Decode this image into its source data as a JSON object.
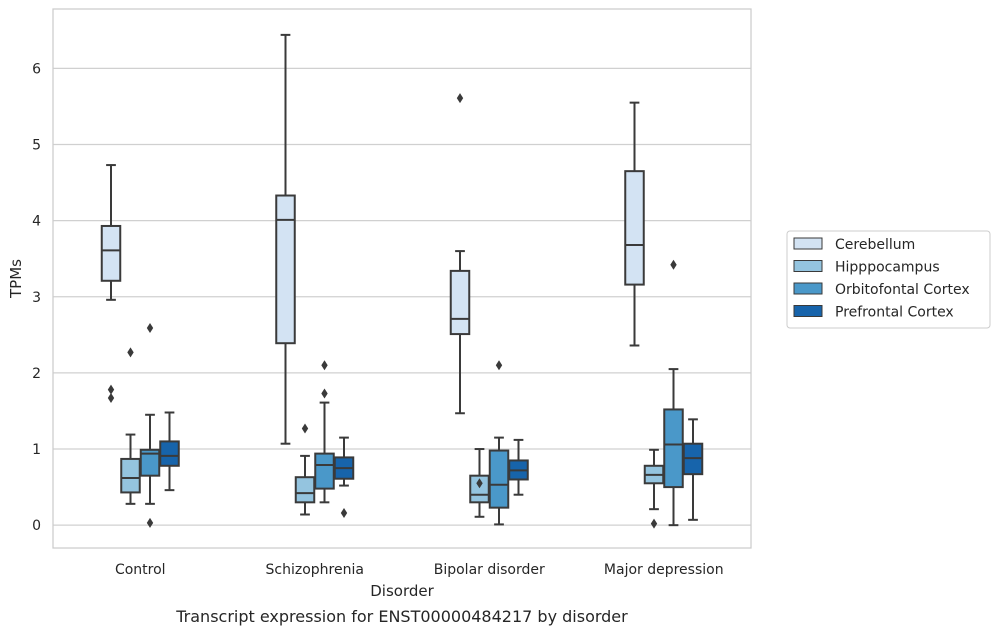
{
  "chart_data": {
    "type": "box",
    "caption": "Transcript expression for ENST00000484217 by disorder",
    "xlabel": "Disorder",
    "ylabel": "TPMs",
    "ylim": [
      -0.3,
      6.78
    ],
    "yticks": [
      "0",
      "1",
      "2",
      "3",
      "4",
      "5",
      "6"
    ],
    "grid": "horizontal",
    "legend_position": "right",
    "categories": [
      "Control",
      "Schizophrenia",
      "Bipolar disorder",
      "Major depression"
    ],
    "series": [
      {
        "name": "Cerebellum",
        "color": "#d3e3f3",
        "boxes": [
          {
            "whislo": 2.96,
            "q1": 3.21,
            "med": 3.61,
            "q3": 3.93,
            "whishi": 4.73,
            "fliers": [
              1.78,
              1.67
            ]
          },
          {
            "whislo": 1.07,
            "q1": 2.39,
            "med": 4.01,
            "q3": 4.33,
            "whishi": 6.44,
            "fliers": []
          },
          {
            "whislo": 1.47,
            "q1": 2.51,
            "med": 2.71,
            "q3": 3.34,
            "whishi": 3.6,
            "fliers": [
              5.61
            ]
          },
          {
            "whislo": 2.36,
            "q1": 3.16,
            "med": 3.68,
            "q3": 4.65,
            "whishi": 5.55,
            "fliers": []
          }
        ]
      },
      {
        "name": "Hipppocampus",
        "color": "#94c4df",
        "boxes": [
          {
            "whislo": 0.28,
            "q1": 0.43,
            "med": 0.62,
            "q3": 0.87,
            "whishi": 1.19,
            "fliers": [
              2.27
            ]
          },
          {
            "whislo": 0.14,
            "q1": 0.3,
            "med": 0.42,
            "q3": 0.63,
            "whishi": 0.91,
            "fliers": [
              1.27
            ]
          },
          {
            "whislo": 0.11,
            "q1": 0.3,
            "med": 0.4,
            "q3": 0.65,
            "whishi": 1.0,
            "fliers": [
              0.55
            ]
          },
          {
            "whislo": 0.21,
            "q1": 0.55,
            "med": 0.66,
            "q3": 0.78,
            "whishi": 0.99,
            "fliers": [
              0.02
            ]
          }
        ]
      },
      {
        "name": "Orbitofontal Cortex",
        "color": "#4a98c9",
        "boxes": [
          {
            "whislo": 0.28,
            "q1": 0.65,
            "med": 0.94,
            "q3": 0.99,
            "whishi": 1.45,
            "fliers": [
              2.59,
              0.03
            ]
          },
          {
            "whislo": 0.3,
            "q1": 0.48,
            "med": 0.79,
            "q3": 0.94,
            "whishi": 1.61,
            "fliers": [
              2.1,
              1.73
            ]
          },
          {
            "whislo": 0.01,
            "q1": 0.23,
            "med": 0.53,
            "q3": 0.98,
            "whishi": 1.15,
            "fliers": [
              2.1
            ]
          },
          {
            "whislo": 0.0,
            "q1": 0.5,
            "med": 1.06,
            "q3": 1.52,
            "whishi": 2.05,
            "fliers": [
              3.42
            ]
          }
        ]
      },
      {
        "name": "Prefrontal Cortex",
        "color": "#1764ab",
        "boxes": [
          {
            "whislo": 0.46,
            "q1": 0.78,
            "med": 0.91,
            "q3": 1.1,
            "whishi": 1.48,
            "fliers": []
          },
          {
            "whislo": 0.52,
            "q1": 0.61,
            "med": 0.75,
            "q3": 0.89,
            "whishi": 1.15,
            "fliers": [
              0.16
            ]
          },
          {
            "whislo": 0.4,
            "q1": 0.6,
            "med": 0.72,
            "q3": 0.85,
            "whishi": 1.12,
            "fliers": []
          },
          {
            "whislo": 0.07,
            "q1": 0.67,
            "med": 0.88,
            "q3": 1.07,
            "whishi": 1.39,
            "fliers": []
          }
        ]
      }
    ]
  }
}
